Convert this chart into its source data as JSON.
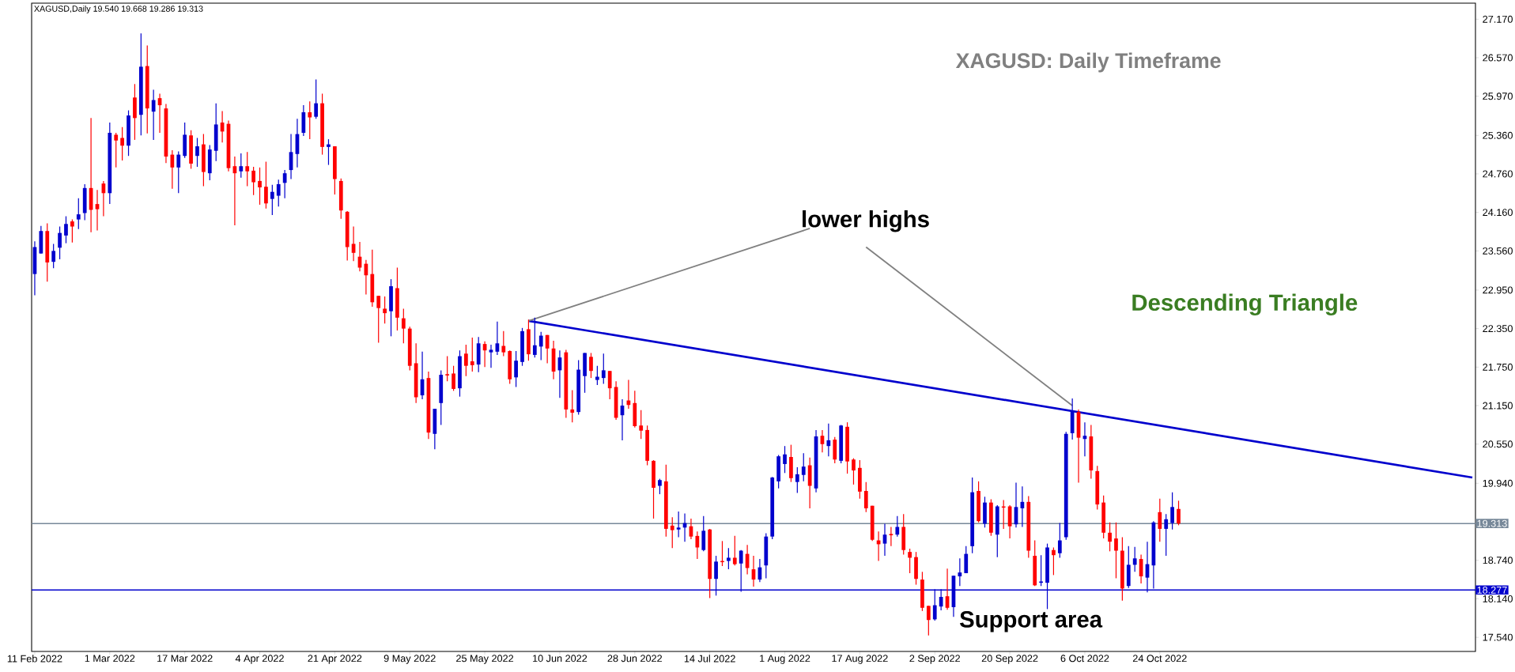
{
  "chart_data": {
    "type": "candlestick",
    "title": "XAGUSD: Daily Timeframe",
    "subtitle": "XAGUSD,Daily  19.540 19.668 19.286 19.313",
    "annotations": [
      "lower highs",
      "Descending Triangle",
      "Support area"
    ],
    "categories": [
      "11 Feb 2022",
      null,
      null,
      null,
      null,
      null,
      null,
      null,
      null,
      null,
      null,
      null,
      "1 Mar 2022",
      null,
      null,
      null,
      null,
      null,
      null,
      null,
      null,
      null,
      null,
      null,
      "17 Mar 2022",
      null,
      null,
      null,
      null,
      null,
      null,
      null,
      null,
      null,
      null,
      null,
      "4 Apr 2022",
      null,
      null,
      null,
      null,
      null,
      null,
      null,
      null,
      null,
      null,
      null,
      "21 Apr 2022",
      null,
      null,
      null,
      null,
      null,
      null,
      null,
      null,
      null,
      null,
      null,
      "9 May 2022",
      null,
      null,
      null,
      null,
      null,
      null,
      null,
      null,
      null,
      null,
      null,
      "25 May 2022",
      null,
      null,
      null,
      null,
      null,
      null,
      null,
      null,
      null,
      null,
      null,
      "10 Jun 2022",
      null,
      null,
      null,
      null,
      null,
      null,
      null,
      null,
      null,
      null,
      null,
      "28 Jun 2022",
      null,
      null,
      null,
      null,
      null,
      null,
      null,
      null,
      null,
      null,
      null,
      "14 Jul 2022",
      null,
      null,
      null,
      null,
      null,
      null,
      null,
      null,
      null,
      null,
      null,
      "1 Aug 2022",
      null,
      null,
      null,
      null,
      null,
      null,
      null,
      null,
      null,
      null,
      null,
      "17 Aug 2022",
      null,
      null,
      null,
      null,
      null,
      null,
      null,
      null,
      null,
      null,
      null,
      "2 Sep 2022",
      null,
      null,
      null,
      null,
      null,
      null,
      null,
      null,
      null,
      null,
      null,
      "20 Sep 2022",
      null,
      null,
      null,
      null,
      null,
      null,
      null,
      null,
      null,
      null,
      null,
      "6 Oct 2022",
      null,
      null,
      null,
      null,
      null,
      null,
      null,
      null,
      null,
      null,
      null,
      "24 Oct 2022",
      null,
      null,
      null,
      null,
      null,
      null,
      null,
      null,
      null,
      null,
      null,
      null,
      null,
      null,
      null,
      null,
      null,
      null,
      null,
      null,
      null,
      null,
      null,
      null,
      null,
      null,
      null,
      null,
      null,
      null,
      null,
      null,
      null,
      null,
      null,
      null,
      null,
      null,
      null,
      null,
      null,
      null,
      null,
      null,
      null,
      null,
      null,
      null,
      null,
      null
    ],
    "ohlc": [
      [
        23.2,
        23.71,
        22.87,
        23.62
      ],
      [
        23.52,
        23.95,
        23.52,
        23.87
      ],
      [
        23.87,
        23.99,
        23.08,
        23.38
      ],
      [
        23.39,
        23.67,
        23.29,
        23.56
      ],
      [
        23.61,
        23.94,
        23.43,
        23.84
      ],
      [
        23.8,
        24.1,
        23.68,
        23.98
      ],
      [
        24.02,
        24.05,
        23.69,
        23.94
      ],
      [
        24.05,
        24.38,
        23.9,
        24.13
      ],
      [
        24.15,
        24.6,
        24.04,
        24.54
      ],
      [
        24.54,
        25.63,
        23.85,
        24.2
      ],
      [
        24.29,
        24.51,
        23.88,
        24.21
      ],
      [
        24.61,
        24.65,
        24.1,
        24.46
      ],
      [
        24.46,
        25.56,
        24.29,
        25.4
      ],
      [
        25.37,
        25.4,
        24.86,
        25.28
      ],
      [
        25.32,
        25.49,
        24.97,
        25.2
      ],
      [
        25.2,
        25.75,
        25.04,
        25.67
      ],
      [
        25.95,
        26.16,
        25.29,
        25.63
      ],
      [
        25.68,
        26.95,
        25.36,
        26.43
      ],
      [
        26.44,
        26.76,
        25.39,
        25.78
      ],
      [
        25.73,
        26.07,
        25.29,
        25.91
      ],
      [
        25.94,
        26.01,
        25.4,
        25.83
      ],
      [
        25.78,
        25.85,
        24.93,
        25.03
      ],
      [
        25.06,
        25.13,
        24.53,
        24.86
      ],
      [
        24.86,
        25.11,
        24.46,
        25.06
      ],
      [
        25.04,
        25.56,
        25.01,
        25.37
      ],
      [
        25.36,
        25.44,
        24.84,
        24.92
      ],
      [
        25.04,
        25.32,
        24.87,
        25.19
      ],
      [
        25.22,
        25.38,
        24.57,
        24.79
      ],
      [
        24.77,
        25.21,
        24.66,
        25.14
      ],
      [
        25.12,
        25.86,
        24.96,
        25.53
      ],
      [
        25.56,
        25.74,
        25.25,
        25.42
      ],
      [
        25.54,
        25.59,
        24.8,
        24.85
      ],
      [
        24.88,
        25.03,
        23.96,
        24.77
      ],
      [
        24.8,
        25.08,
        24.7,
        24.88
      ],
      [
        24.88,
        25.1,
        24.57,
        24.8
      ],
      [
        24.81,
        24.87,
        24.43,
        24.63
      ],
      [
        24.65,
        24.86,
        24.28,
        24.55
      ],
      [
        24.56,
        24.95,
        24.22,
        24.3
      ],
      [
        24.37,
        24.59,
        24.12,
        24.48
      ],
      [
        24.42,
        24.67,
        24.25,
        24.6
      ],
      [
        24.62,
        24.82,
        24.38,
        24.77
      ],
      [
        24.82,
        25.38,
        24.68,
        25.1
      ],
      [
        25.07,
        25.62,
        24.86,
        25.38
      ],
      [
        25.4,
        25.83,
        25.35,
        25.72
      ],
      [
        25.72,
        25.89,
        25.3,
        25.64
      ],
      [
        25.65,
        26.23,
        25.62,
        25.86
      ],
      [
        25.86,
        26.01,
        25.06,
        25.18
      ],
      [
        25.18,
        25.3,
        24.9,
        25.22
      ],
      [
        25.19,
        25.19,
        24.44,
        24.68
      ],
      [
        24.65,
        24.69,
        24.06,
        24.19
      ],
      [
        24.17,
        24.18,
        23.41,
        23.62
      ],
      [
        23.67,
        23.94,
        23.4,
        23.53
      ],
      [
        23.47,
        23.7,
        23.24,
        23.3
      ],
      [
        23.36,
        23.42,
        22.88,
        23.18
      ],
      [
        23.2,
        23.58,
        22.69,
        22.76
      ],
      [
        22.86,
        22.86,
        22.13,
        22.67
      ],
      [
        22.66,
        22.85,
        22.43,
        22.59
      ],
      [
        22.62,
        23.12,
        22.23,
        23.01
      ],
      [
        22.98,
        23.3,
        22.32,
        22.52
      ],
      [
        22.51,
        22.66,
        22.12,
        22.35
      ],
      [
        22.35,
        22.38,
        21.7,
        21.77
      ],
      [
        21.81,
        22.12,
        21.19,
        21.28
      ],
      [
        21.31,
        21.99,
        21.25,
        21.56
      ],
      [
        21.58,
        21.68,
        20.63,
        20.73
      ],
      [
        20.71,
        21.1,
        20.47,
        21.1
      ],
      [
        21.19,
        21.7,
        20.85,
        21.63
      ],
      [
        21.64,
        21.92,
        21.53,
        21.62
      ],
      [
        21.65,
        21.77,
        21.38,
        21.41
      ],
      [
        21.42,
        22.01,
        21.29,
        21.92
      ],
      [
        21.96,
        22.1,
        21.61,
        21.77
      ],
      [
        21.84,
        22.21,
        21.68,
        21.78
      ],
      [
        21.79,
        22.22,
        21.67,
        22.12
      ],
      [
        22.11,
        22.15,
        21.75,
        22.01
      ],
      [
        21.98,
        22.1,
        21.74,
        22.02
      ],
      [
        21.99,
        22.46,
        21.94,
        22.12
      ],
      [
        22.08,
        22.31,
        21.92,
        21.98
      ],
      [
        22.0,
        22.01,
        21.49,
        21.56
      ],
      [
        21.59,
        22.0,
        21.44,
        21.85
      ],
      [
        21.83,
        22.36,
        21.77,
        22.31
      ],
      [
        22.34,
        22.49,
        21.85,
        21.95
      ],
      [
        21.94,
        22.52,
        21.9,
        22.09
      ],
      [
        22.07,
        22.3,
        21.86,
        22.24
      ],
      [
        22.25,
        22.25,
        21.81,
        22.04
      ],
      [
        22.04,
        22.16,
        21.56,
        21.68
      ],
      [
        21.7,
        22.01,
        21.27,
        21.9
      ],
      [
        21.98,
        22.02,
        20.96,
        21.09
      ],
      [
        21.09,
        21.39,
        20.89,
        21.04
      ],
      [
        21.05,
        21.86,
        21.01,
        21.71
      ],
      [
        21.61,
        21.97,
        21.35,
        21.97
      ],
      [
        21.91,
        21.97,
        21.58,
        21.69
      ],
      [
        21.55,
        21.77,
        21.47,
        21.6
      ],
      [
        21.58,
        21.96,
        21.49,
        21.7
      ],
      [
        21.69,
        21.69,
        21.25,
        21.42
      ],
      [
        21.44,
        21.53,
        20.93,
        20.96
      ],
      [
        21.0,
        21.25,
        20.61,
        21.15
      ],
      [
        21.23,
        21.55,
        21.1,
        21.16
      ],
      [
        21.19,
        21.38,
        20.81,
        20.83
      ],
      [
        20.84,
        21.08,
        20.63,
        20.76
      ],
      [
        20.77,
        20.84,
        20.22,
        20.29
      ],
      [
        20.29,
        20.3,
        19.39,
        19.87
      ],
      [
        19.9,
        20.01,
        19.77,
        19.99
      ],
      [
        19.97,
        20.23,
        19.11,
        19.23
      ],
      [
        19.28,
        19.41,
        18.93,
        19.21
      ],
      [
        19.22,
        19.5,
        19.1,
        19.25
      ],
      [
        19.25,
        19.47,
        19.03,
        19.32
      ],
      [
        19.27,
        19.39,
        19.07,
        19.11
      ],
      [
        19.12,
        19.19,
        18.76,
        18.94
      ],
      [
        18.9,
        19.43,
        18.88,
        19.2
      ],
      [
        19.22,
        19.23,
        18.15,
        18.45
      ],
      [
        18.45,
        18.81,
        18.19,
        18.72
      ],
      [
        18.72,
        19.04,
        18.65,
        18.71
      ],
      [
        18.73,
        18.93,
        18.6,
        18.78
      ],
      [
        18.78,
        19.12,
        18.66,
        18.68
      ],
      [
        18.69,
        18.9,
        18.25,
        18.89
      ],
      [
        18.84,
        18.98,
        18.52,
        18.62
      ],
      [
        18.6,
        18.81,
        18.33,
        18.44
      ],
      [
        18.44,
        18.76,
        18.4,
        18.63
      ],
      [
        18.66,
        19.16,
        18.46,
        19.11
      ],
      [
        19.11,
        20.04,
        19.07,
        20.03
      ],
      [
        19.97,
        20.38,
        19.86,
        20.36
      ],
      [
        20.24,
        20.52,
        20.1,
        20.39
      ],
      [
        20.35,
        20.54,
        19.96,
        20.02
      ],
      [
        19.96,
        20.19,
        19.79,
        20.08
      ],
      [
        20.07,
        20.41,
        19.97,
        20.2
      ],
      [
        20.22,
        20.34,
        19.55,
        19.9
      ],
      [
        19.86,
        20.77,
        19.8,
        20.67
      ],
      [
        20.68,
        20.77,
        20.42,
        20.55
      ],
      [
        20.52,
        20.87,
        20.36,
        20.61
      ],
      [
        20.62,
        20.66,
        20.25,
        20.31
      ],
      [
        20.29,
        20.85,
        20.25,
        20.84
      ],
      [
        20.82,
        20.89,
        20.09,
        20.28
      ],
      [
        20.31,
        20.33,
        19.92,
        20.14
      ],
      [
        20.18,
        20.3,
        19.7,
        19.81
      ],
      [
        19.82,
        19.96,
        19.49,
        19.55
      ],
      [
        19.59,
        19.59,
        19.04,
        19.06
      ],
      [
        19.05,
        19.19,
        18.73,
        18.99
      ],
      [
        19.0,
        19.31,
        18.81,
        19.14
      ],
      [
        19.15,
        19.26,
        18.96,
        19.13
      ],
      [
        19.14,
        19.43,
        19.11,
        19.26
      ],
      [
        19.26,
        19.46,
        18.83,
        18.9
      ],
      [
        18.87,
        18.92,
        18.54,
        18.78
      ],
      [
        18.79,
        18.87,
        18.36,
        18.45
      ],
      [
        18.44,
        18.56,
        17.95,
        18.0
      ],
      [
        18.03,
        18.03,
        17.57,
        17.81
      ],
      [
        17.82,
        18.29,
        17.8,
        18.04
      ],
      [
        18.02,
        18.29,
        17.96,
        18.17
      ],
      [
        18.18,
        18.61,
        17.97,
        18.0
      ],
      [
        18.01,
        18.5,
        17.86,
        18.5
      ],
      [
        18.49,
        18.77,
        18.34,
        18.55
      ],
      [
        18.54,
        18.96,
        18.54,
        18.84
      ],
      [
        18.96,
        20.03,
        18.85,
        19.8
      ],
      [
        19.82,
        19.97,
        19.33,
        19.35
      ],
      [
        19.31,
        19.73,
        19.25,
        19.64
      ],
      [
        19.64,
        19.69,
        19.12,
        19.17
      ],
      [
        19.14,
        19.6,
        18.79,
        19.58
      ],
      [
        19.57,
        19.68,
        19.23,
        19.56
      ],
      [
        19.58,
        19.6,
        19.08,
        19.27
      ],
      [
        19.3,
        19.95,
        19.25,
        19.57
      ],
      [
        19.55,
        19.89,
        19.26,
        19.65
      ],
      [
        19.65,
        19.74,
        18.78,
        18.89
      ],
      [
        18.81,
        19.05,
        18.34,
        18.35
      ],
      [
        18.39,
        18.82,
        18.34,
        18.41
      ],
      [
        18.39,
        19.0,
        17.98,
        18.94
      ],
      [
        18.9,
        18.94,
        18.51,
        18.82
      ],
      [
        18.85,
        19.32,
        18.78,
        19.05
      ],
      [
        19.1,
        20.74,
        19.06,
        20.71
      ],
      [
        20.72,
        21.26,
        20.62,
        21.06
      ],
      [
        21.05,
        21.09,
        19.95,
        20.65
      ],
      [
        20.63,
        20.89,
        20.36,
        20.68
      ],
      [
        20.67,
        20.85,
        20.01,
        20.14
      ],
      [
        20.13,
        20.21,
        19.53,
        19.61
      ],
      [
        19.64,
        19.75,
        19.08,
        19.17
      ],
      [
        19.17,
        19.33,
        18.88,
        19.03
      ],
      [
        19.08,
        19.33,
        18.46,
        18.89
      ],
      [
        18.89,
        19.1,
        18.11,
        18.3
      ],
      [
        18.34,
        18.96,
        18.31,
        18.67
      ],
      [
        18.67,
        18.95,
        18.56,
        18.77
      ],
      [
        18.76,
        18.83,
        18.38,
        18.49
      ],
      [
        18.47,
        19.03,
        18.24,
        18.68
      ],
      [
        18.66,
        19.35,
        18.3,
        19.33
      ],
      [
        19.49,
        19.7,
        19.03,
        19.23
      ],
      [
        19.23,
        19.46,
        18.81,
        19.38
      ],
      [
        19.32,
        19.8,
        19.22,
        19.57
      ],
      [
        19.54,
        19.668,
        19.286,
        19.313
      ],
      null,
      null,
      null,
      null,
      null,
      null,
      null,
      null,
      null,
      null,
      null,
      null,
      null,
      null,
      null,
      null,
      null,
      null,
      null,
      null,
      null,
      null,
      null,
      null,
      null,
      null,
      null,
      null,
      null,
      null,
      null,
      null,
      null,
      null,
      null,
      null,
      null,
      null,
      null,
      null,
      null,
      null,
      null,
      null,
      null,
      null,
      null
    ],
    "colors": [
      "#0000cd",
      "#0000cd",
      "#ff0000",
      "#0000cd",
      "#0000cd",
      "#0000cd",
      "#ff0000",
      "#0000cd",
      "#0000cd",
      "#ff0000",
      "#ff0000",
      "#ff0000",
      "#0000cd",
      "#ff0000",
      "#ff0000",
      "#0000cd",
      "#ff0000",
      "#0000cd",
      "#ff0000",
      "#0000cd",
      "#ff0000",
      "#ff0000",
      "#ff0000",
      "#0000cd",
      "#0000cd",
      "#ff0000",
      "#0000cd",
      "#ff0000",
      "#0000cd",
      "#0000cd",
      "#ff0000",
      "#ff0000",
      "#ff0000",
      "#0000cd",
      "#ff0000",
      "#ff0000",
      "#ff0000",
      "#ff0000",
      "#0000cd",
      "#0000cd",
      "#0000cd",
      "#0000cd",
      "#0000cd",
      "#0000cd",
      "#ff0000",
      "#0000cd",
      "#ff0000",
      "#0000cd",
      "#ff0000",
      "#ff0000",
      "#ff0000",
      "#ff0000",
      "#ff0000",
      "#ff0000",
      "#ff0000",
      "#ff0000",
      "#ff0000",
      "#0000cd",
      "#ff0000",
      "#ff0000",
      "#ff0000",
      "#ff0000",
      "#0000cd",
      "#ff0000",
      "#0000cd",
      "#0000cd",
      "#ff0000",
      "#ff0000",
      "#0000cd",
      "#ff0000",
      "#ff0000",
      "#0000cd",
      "#ff0000",
      "#0000cd",
      "#0000cd",
      "#ff0000",
      "#ff0000",
      "#0000cd",
      "#0000cd",
      "#ff0000",
      "#0000cd",
      "#0000cd",
      "#ff0000",
      "#ff0000",
      "#0000cd",
      "#ff0000",
      "#ff0000",
      "#0000cd",
      "#0000cd",
      "#ff0000",
      "#0000cd",
      "#0000cd",
      "#ff0000",
      "#ff0000",
      "#0000cd",
      "#ff0000",
      "#ff0000",
      "#ff0000",
      "#ff0000",
      "#ff0000",
      "#0000cd",
      "#ff0000",
      "#ff0000",
      "#0000cd",
      "#0000cd",
      "#ff0000",
      "#ff0000",
      "#0000cd",
      "#ff0000",
      "#0000cd",
      "#ff0000",
      "#0000cd",
      "#ff0000",
      "#0000cd",
      "#ff0000",
      "#ff0000",
      "#0000cd",
      "#0000cd",
      "#0000cd",
      "#0000cd",
      "#0000cd",
      "#ff0000",
      "#0000cd",
      "#0000cd",
      "#ff0000",
      "#0000cd",
      "#ff0000",
      "#0000cd",
      "#ff0000",
      "#0000cd",
      "#ff0000",
      "#ff0000",
      "#ff0000",
      "#ff0000",
      "#ff0000",
      "#ff0000",
      "#0000cd",
      "#ff0000",
      "#0000cd",
      "#ff0000",
      "#ff0000",
      "#ff0000",
      "#ff0000",
      "#ff0000",
      "#0000cd",
      "#0000cd",
      "#ff0000",
      "#0000cd",
      "#0000cd",
      "#0000cd",
      "#0000cd",
      "#ff0000",
      "#0000cd",
      "#ff0000",
      "#0000cd",
      "#ff0000",
      "#ff0000",
      "#0000cd",
      "#0000cd",
      "#ff0000",
      "#ff0000",
      "#0000cd",
      "#0000cd",
      "#ff0000",
      "#0000cd",
      "#0000cd",
      "#0000cd",
      "#ff0000",
      "#0000cd",
      "#ff0000",
      "#ff0000",
      "#ff0000",
      "#ff0000",
      "#ff0000",
      "#ff0000",
      "#0000cd",
      "#0000cd",
      "#ff0000",
      "#0000cd",
      "#0000cd",
      "#ff0000",
      "#0000cd",
      "#0000cd",
      "#ff0000",
      null,
      null,
      null,
      null,
      null,
      null,
      null,
      null,
      null,
      null,
      null,
      null,
      null,
      null,
      null,
      null,
      null,
      null,
      null,
      null,
      null,
      null,
      null,
      null,
      null,
      null,
      null,
      null,
      null,
      null,
      null,
      null,
      null,
      null,
      null,
      null,
      null,
      null,
      null,
      null,
      null,
      null,
      null,
      null,
      null,
      null,
      null
    ],
    "series": [
      {
        "type": "line",
        "color": "#0000cd",
        "values": [
          null,
          null,
          null,
          null,
          null,
          null,
          null,
          null,
          null,
          null,
          null,
          null,
          null,
          null,
          null,
          null,
          null,
          null,
          null,
          null,
          null,
          null,
          null,
          null,
          null,
          null,
          null,
          null,
          null,
          null,
          null,
          null,
          null,
          null,
          null,
          null,
          null,
          null,
          null,
          null,
          null,
          null,
          null,
          null,
          null,
          null,
          null,
          null,
          null,
          null,
          null,
          null,
          null,
          null,
          null,
          null,
          null,
          null,
          null,
          null,
          null,
          null,
          null,
          null,
          null,
          null,
          null,
          null,
          null,
          null,
          null,
          null,
          null,
          null,
          null,
          null,
          null,
          null,
          null,
          22.47,
          null,
          null,
          null,
          null,
          null,
          null,
          null,
          null,
          null,
          null,
          null,
          null,
          null,
          null,
          null,
          null,
          null,
          null,
          null,
          null,
          null,
          null,
          null,
          null,
          null,
          null,
          null,
          null,
          null,
          null,
          null,
          null,
          null,
          null,
          null,
          null,
          null,
          null,
          null,
          null,
          null,
          null,
          null,
          null,
          null,
          null,
          null,
          null,
          null,
          null,
          null,
          null,
          null,
          null,
          null,
          null,
          null,
          null,
          null,
          null,
          null,
          null,
          null,
          null,
          null,
          null,
          null,
          null,
          null,
          null,
          null,
          null,
          null,
          null,
          null,
          null,
          null,
          null,
          null,
          null,
          null,
          null,
          null,
          null,
          null,
          null,
          null,
          null,
          null,
          null,
          null,
          null,
          null,
          null,
          null,
          null,
          null,
          null,
          null,
          null,
          null,
          null,
          null,
          null,
          null,
          null,
          null,
          null,
          null,
          null,
          null,
          null,
          null,
          null,
          null,
          null,
          null,
          null,
          null,
          null,
          null,
          null,
          null,
          null,
          null,
          null,
          null,
          null,
          null,
          null,
          null,
          null,
          null,
          null,
          null,
          null,
          null,
          null,
          null,
          null,
          null,
          null,
          null,
          null,
          null,
          null,
          null,
          null,
          null,
          null,
          20.03
        ]
      },
      {
        "type": "line",
        "color": "#808080",
        "values": [
          null,
          null,
          null,
          null,
          null,
          null,
          null,
          null,
          null,
          null,
          null,
          null,
          null,
          null,
          null,
          null,
          null,
          null,
          null,
          null,
          null,
          null,
          null,
          null,
          null,
          null,
          null,
          null,
          null,
          null,
          null,
          null,
          null,
          null,
          null,
          null,
          null,
          null,
          null,
          null,
          null,
          null,
          null,
          null,
          null,
          null,
          null,
          null,
          null,
          null,
          null,
          null,
          null,
          null,
          null,
          null,
          null,
          null,
          null,
          null,
          null,
          null,
          null,
          null,
          null,
          null,
          null,
          null,
          null,
          null,
          null,
          null,
          null,
          null,
          null,
          null,
          null,
          null,
          null,
          22.47,
          null,
          null,
          null,
          null,
          null,
          null,
          null,
          null,
          null,
          null,
          null,
          null,
          null,
          null,
          null,
          null,
          null,
          null,
          null,
          null,
          null,
          null,
          null,
          null,
          null,
          null,
          null,
          null,
          null,
          null,
          null,
          null,
          null,
          null,
          null,
          null,
          null,
          null,
          null,
          null,
          null,
          null,
          null,
          null,
          23.91,
          null,
          null,
          null,
          null,
          null,
          null,
          null,
          null,
          null,
          null,
          null,
          null,
          null,
          null,
          null,
          null,
          null,
          null,
          null,
          null,
          null,
          null,
          null,
          null,
          null,
          null,
          null,
          null,
          null,
          null,
          null,
          null,
          null,
          null,
          null,
          null,
          null,
          null,
          null,
          null,
          null,
          null,
          null,
          null,
          null,
          null,
          null,
          null,
          null,
          null,
          null,
          null,
          null,
          null,
          null,
          null,
          null,
          null,
          null,
          null,
          null,
          null,
          null,
          null,
          null,
          null,
          null,
          null,
          null,
          null,
          null,
          null,
          null,
          null,
          null,
          null,
          null,
          null,
          null,
          null,
          null,
          null,
          null,
          null,
          null,
          null,
          null,
          null,
          null,
          null,
          null,
          null,
          null,
          null,
          null,
          null,
          null,
          null,
          null,
          null,
          null,
          null,
          null,
          null,
          null,
          null
        ]
      },
      {
        "type": "line",
        "color": "#808080",
        "values": [
          null,
          null,
          null,
          null,
          null,
          null,
          null,
          null,
          null,
          null,
          null,
          null,
          null,
          null,
          null,
          null,
          null,
          null,
          null,
          null,
          null,
          null,
          null,
          null,
          null,
          null,
          null,
          null,
          null,
          null,
          null,
          null,
          null,
          null,
          null,
          null,
          null,
          null,
          null,
          null,
          null,
          null,
          null,
          null,
          null,
          null,
          null,
          null,
          null,
          null,
          null,
          null,
          null,
          null,
          null,
          null,
          null,
          null,
          null,
          null,
          null,
          null,
          null,
          null,
          null,
          null,
          null,
          null,
          null,
          null,
          null,
          null,
          null,
          null,
          null,
          null,
          null,
          null,
          null,
          null,
          null,
          null,
          null,
          null,
          null,
          null,
          null,
          null,
          null,
          null,
          null,
          null,
          null,
          null,
          null,
          null,
          null,
          null,
          null,
          null,
          null,
          null,
          null,
          null,
          null,
          null,
          null,
          null,
          null,
          null,
          null,
          null,
          null,
          null,
          null,
          null,
          null,
          null,
          null,
          null,
          null,
          null,
          null,
          null,
          null,
          null,
          null,
          null,
          null,
          null,
          null,
          null,
          null,
          23.62,
          null,
          null,
          null,
          null,
          null,
          null,
          null,
          null,
          null,
          null,
          null,
          null,
          null,
          null,
          null,
          null,
          null,
          null,
          null,
          null,
          null,
          null,
          null,
          null,
          null,
          null,
          null,
          null,
          null,
          null,
          null,
          null,
          21.15,
          null,
          null,
          null,
          null,
          null,
          null,
          null,
          null,
          null,
          null,
          null,
          null,
          null,
          null,
          null,
          null,
          null,
          null,
          null,
          null,
          null,
          null,
          null,
          null,
          null,
          null,
          null,
          null,
          null,
          null,
          null,
          null,
          null,
          null,
          null,
          null,
          null,
          null,
          null,
          null,
          null,
          null,
          null,
          null,
          null,
          null,
          null,
          null,
          null,
          null,
          null,
          null,
          null,
          null,
          null,
          null,
          null,
          null,
          null,
          null,
          null,
          null,
          null,
          null
        ]
      }
    ],
    "ylim": [
      17.32,
      27.42
    ],
    "yticks": [
      {
        "value": 27.17,
        "label": "27.170"
      },
      {
        "value": 26.57,
        "label": "26.570"
      },
      {
        "value": 25.97,
        "label": "25.970"
      },
      {
        "value": 25.36,
        "label": "25.360"
      },
      {
        "value": 24.76,
        "label": "24.760"
      },
      {
        "value": 24.16,
        "label": "24.160"
      },
      {
        "value": 23.56,
        "label": "23.560"
      },
      {
        "value": 22.95,
        "label": "22.950"
      },
      {
        "value": 22.35,
        "label": "22.350"
      },
      {
        "value": 21.75,
        "label": "21.750"
      },
      {
        "value": 21.15,
        "label": "21.150"
      },
      {
        "value": 20.55,
        "label": "20.550"
      },
      {
        "value": 19.94,
        "label": "19.940"
      },
      {
        "value": 18.74,
        "label": "18.740"
      },
      {
        "value": 18.14,
        "label": "18.140"
      },
      {
        "value": 17.54,
        "label": "17.540"
      }
    ],
    "ref_lines": [
      {
        "axis": "y",
        "value": 19.313,
        "label": "19.313",
        "color": "#778899"
      },
      {
        "axis": "y",
        "value": 18.277,
        "label": "18.277",
        "color": "#0000cd"
      }
    ]
  }
}
